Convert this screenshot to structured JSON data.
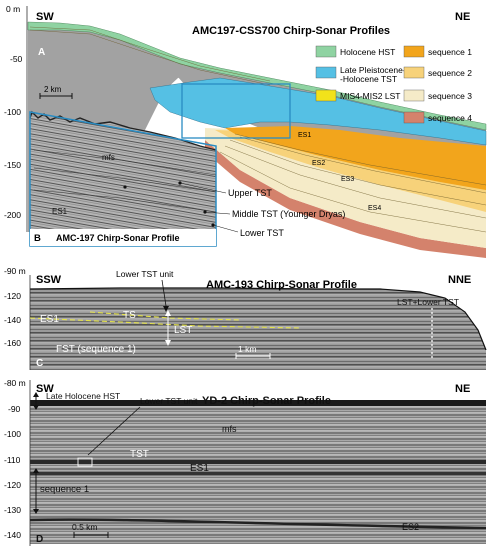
{
  "panel_a": {
    "title": "AMC197-CSS700 Chirp-Sonar Profiles",
    "left_dir": "SW",
    "right_dir": "NE",
    "panel_letter": "A",
    "depth_ticks": [
      "0 m",
      "-50",
      "-100",
      "-150",
      "-200"
    ],
    "scale": "2 km",
    "legend": [
      {
        "label": "Holocene HST",
        "color": "#8fd3a2"
      },
      {
        "label": "sequence 1",
        "color": "#f2a51c"
      },
      {
        "label": "Late Pleistocene-\n-Holocene TST",
        "color": "#55c0e4"
      },
      {
        "label": "sequence 2",
        "color": "#f7d27a"
      },
      {
        "label": "MIS4-MIS2 LST",
        "color": "#f2e21a"
      },
      {
        "label": "sequence 3",
        "color": "#f5ebc8"
      },
      {
        "label": "sequence 4",
        "color": "#d4826c"
      }
    ],
    "surface_labels": [
      "ES1",
      "ES2",
      "ES3",
      "ES4"
    ],
    "box_letter": "B"
  },
  "inset_b": {
    "letter": "B",
    "caption": "AMC-197 Chirp-Sonar Profile",
    "labels": [
      "mfs",
      "ES1"
    ],
    "callouts": [
      "Upper TST",
      "Middle TST (Younger Dryas)",
      "Lower TST"
    ]
  },
  "panel_c": {
    "title": "AMC-193 Chirp-Sonar Profile",
    "left_dir": "SSW",
    "right_dir": "NNE",
    "letter": "C",
    "depth_ticks": [
      "-90 m",
      "-120",
      "-140",
      "-160"
    ],
    "labels": {
      "lower_tst": "Lower TST unit",
      "ts": "TS",
      "es1": "ES1",
      "lst": "LST",
      "fst": "FST (sequence 1)",
      "lst_lower": "LST+Lower TST"
    },
    "scale": "1 km"
  },
  "panel_d": {
    "title": "YD-2 Chirp-Sonar Profile",
    "left_dir": "SW",
    "right_dir": "NE",
    "letter": "D",
    "depth_ticks": [
      "-80 m",
      "-90",
      "-100",
      "-110",
      "-120",
      "-130",
      "-140"
    ],
    "labels": {
      "hst": "Late Holocene HST",
      "lower_tst": "Lower TST unit",
      "mfs": "mfs",
      "tst": "TST",
      "es1": "ES1",
      "sequence1": "sequence 1",
      "es2": "ES2"
    },
    "scale": "0.5 km"
  }
}
